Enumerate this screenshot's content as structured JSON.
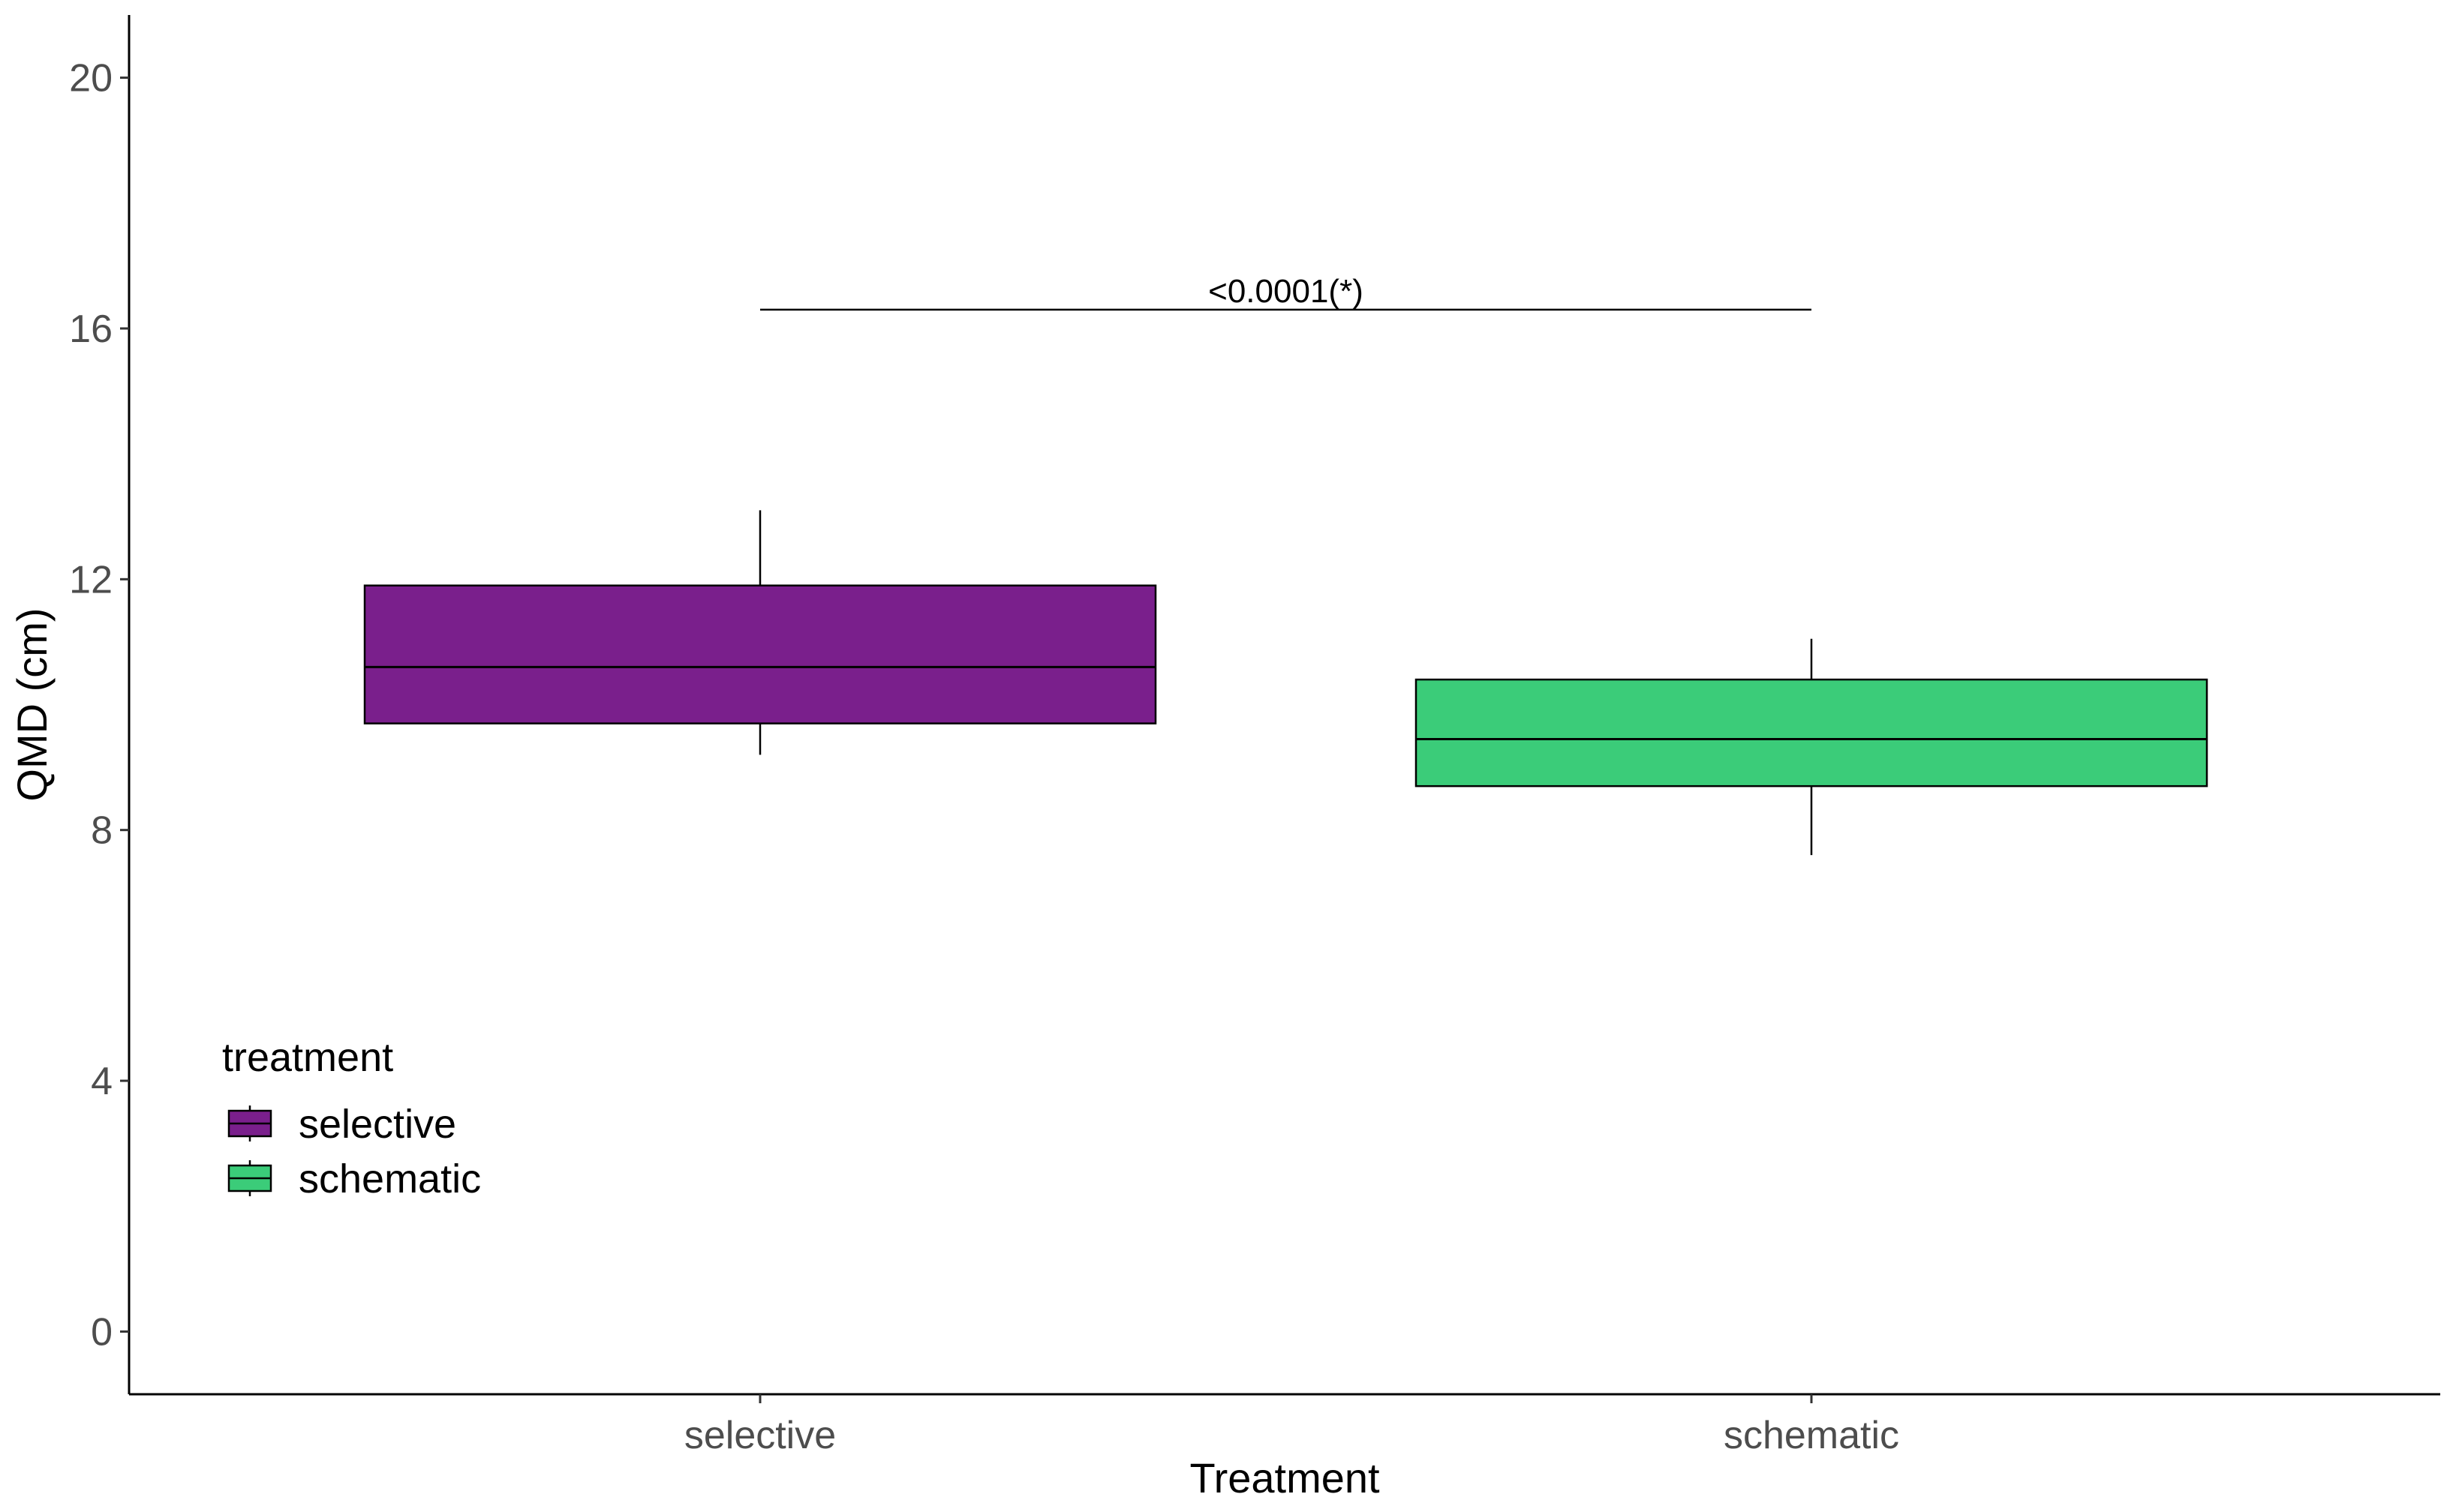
{
  "chart_data": {
    "type": "box",
    "xlabel": "Treatment",
    "ylabel": "QMD (cm)",
    "ylim": [
      -1,
      21
    ],
    "yticks": [
      0,
      4,
      8,
      12,
      16,
      20
    ],
    "grid": false,
    "categories": [
      "selective",
      "schematic"
    ],
    "series": [
      {
        "name": "selective",
        "color": "#7a1f8c",
        "min": 9.2,
        "q1": 9.7,
        "median": 10.6,
        "q3": 11.9,
        "max": 13.1
      },
      {
        "name": "schematic",
        "color": "#3bcc79",
        "min": 7.6,
        "q1": 8.7,
        "median": 9.45,
        "q3": 10.4,
        "max": 11.05
      }
    ],
    "legend": {
      "title": "treatment",
      "placement": "bottom-left",
      "items": [
        "selective",
        "schematic"
      ]
    },
    "annotation": {
      "text": "<0.0001(*)",
      "from": "selective",
      "to": "schematic",
      "y": 16.3
    }
  }
}
